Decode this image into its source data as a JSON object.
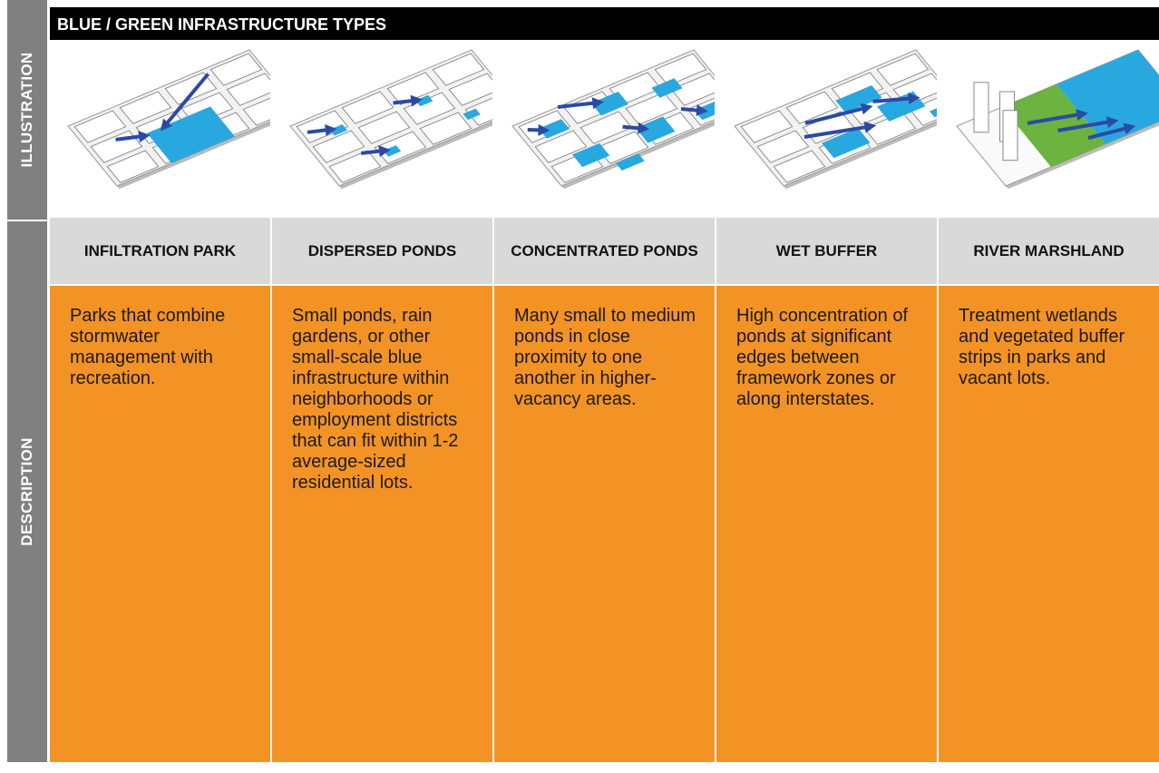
{
  "header": {
    "title": "BLUE / GREEN INFRASTRUCTURE TYPES"
  },
  "side_labels": {
    "illustration": "ILLUSTRATION",
    "description": "DESCRIPTION"
  },
  "columns": [
    {
      "name": "INFILTRATION PARK",
      "description": "Parks that combine stormwater management with recreation."
    },
    {
      "name": "DISPERSED PONDS",
      "description": "Small ponds, rain gardens, or other small-scale blue infrastructure within neighborhoods or employment districts that can fit within 1-2 average-sized residential lots."
    },
    {
      "name": "CONCENTRATED PONDS",
      "description": "Many small to medium ponds in close proximity to one another in higher-vacancy areas."
    },
    {
      "name": "WET BUFFER",
      "description": "High concentration of ponds at significant edges between framework zones or along interstates."
    },
    {
      "name": "RIVER MARSHLAND",
      "description": "Treatment wetlands and vegetated buffer strips in parks and vacant lots."
    }
  ]
}
